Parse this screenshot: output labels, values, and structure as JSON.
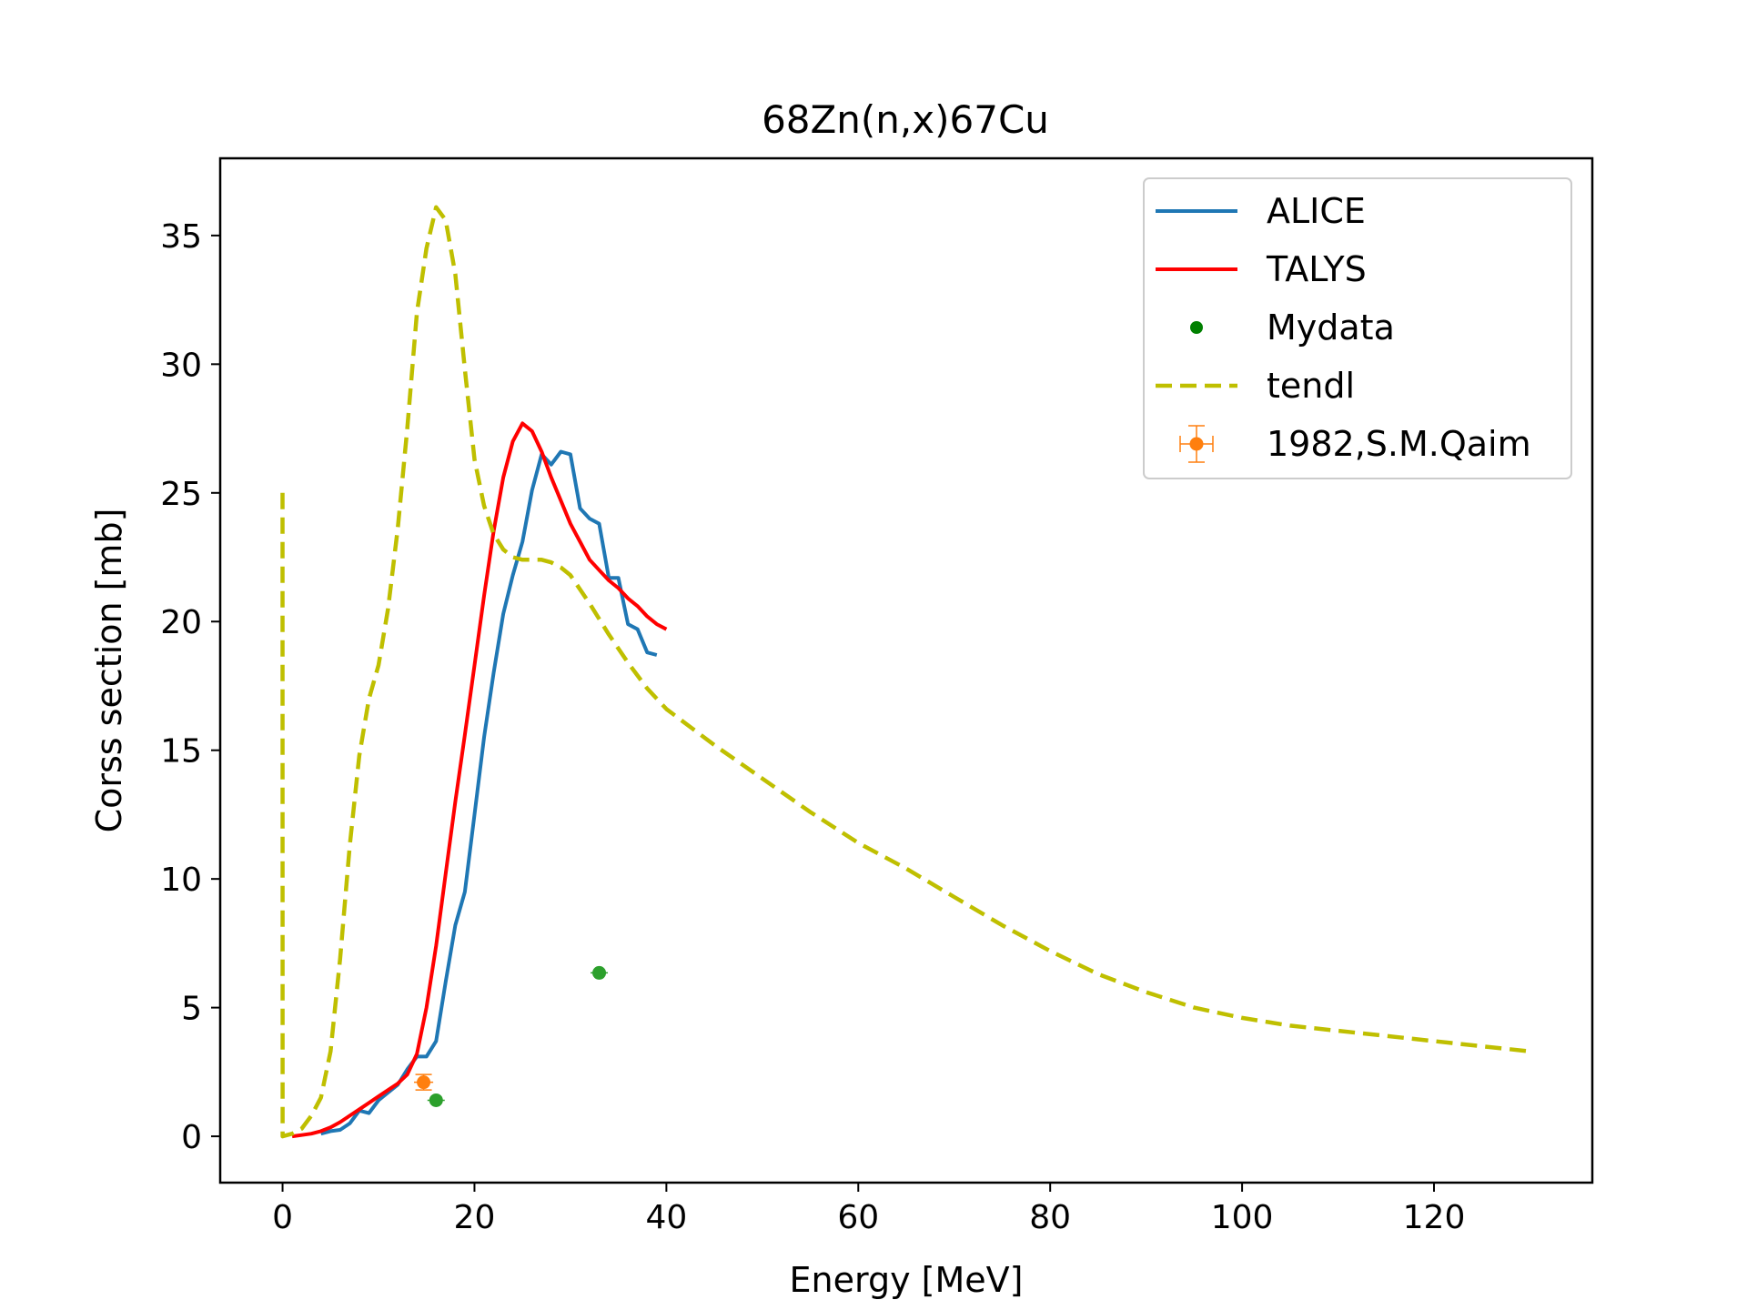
{
  "chart_data": {
    "type": "line",
    "title": "68Zn(n,x)67Cu",
    "xlabel": "Energy [MeV]",
    "ylabel": "Corss section [mb]",
    "xlim": [
      -6.5,
      136.5
    ],
    "ylim": [
      -1.8,
      38.0
    ],
    "xticks": [
      0,
      20,
      40,
      60,
      80,
      100,
      120
    ],
    "yticks": [
      0,
      5,
      10,
      15,
      20,
      25,
      30,
      35
    ],
    "grid": false,
    "legend_position": "top-right",
    "series": [
      {
        "name": "ALICE",
        "style": "solid",
        "color": "#1f77b4",
        "x": [
          4,
          5,
          6,
          7,
          8,
          9,
          10,
          11,
          12,
          13,
          14,
          15,
          16,
          17,
          18,
          19,
          20,
          21,
          22,
          23,
          24,
          25,
          26,
          27,
          28,
          29,
          30,
          31,
          32,
          33,
          34,
          35,
          36,
          37,
          38,
          39
        ],
        "y": [
          0.1,
          0.2,
          0.25,
          0.5,
          1.0,
          0.9,
          1.4,
          1.7,
          2.0,
          2.6,
          3.1,
          3.1,
          3.7,
          6.0,
          8.2,
          9.5,
          12.5,
          15.5,
          18.0,
          20.3,
          21.8,
          23.1,
          25.1,
          26.5,
          26.1,
          26.6,
          26.5,
          24.4,
          24.0,
          23.8,
          21.7,
          21.7,
          19.9,
          19.7,
          18.8,
          18.7
        ]
      },
      {
        "name": "TALYS",
        "style": "solid",
        "color": "#ff0000",
        "x": [
          1,
          2,
          3,
          4,
          5,
          6,
          7,
          8,
          9,
          10,
          11,
          12,
          13,
          14,
          15,
          16,
          17,
          18,
          19,
          20,
          21,
          22,
          23,
          24,
          25,
          26,
          27,
          28,
          29,
          30,
          31,
          32,
          33,
          34,
          35,
          36,
          37,
          38,
          39,
          40
        ],
        "y": [
          0.0,
          0.05,
          0.1,
          0.2,
          0.35,
          0.55,
          0.8,
          1.05,
          1.3,
          1.55,
          1.8,
          2.05,
          2.4,
          3.2,
          5.0,
          7.4,
          10.2,
          13.0,
          15.6,
          18.3,
          21.0,
          23.5,
          25.6,
          27.0,
          27.7,
          27.4,
          26.6,
          25.6,
          24.7,
          23.8,
          23.1,
          22.4,
          22.0,
          21.6,
          21.3,
          20.9,
          20.6,
          20.2,
          19.9,
          19.7
        ]
      },
      {
        "name": "Mydata",
        "style": "marker",
        "color": "#008000",
        "x": [
          16,
          33
        ],
        "y": [
          1.4,
          6.35
        ],
        "xerr": [
          0.9,
          0.9
        ],
        "yerr": [
          0.15,
          0.2
        ]
      },
      {
        "name": "tendl",
        "style": "dashed",
        "color": "#bfbf00",
        "x": [
          0,
          0.001,
          1,
          2,
          3,
          4,
          5,
          6,
          7,
          8,
          9,
          10,
          11,
          12,
          13,
          14,
          15,
          16,
          17,
          18,
          19,
          20,
          21,
          22,
          23,
          24,
          25,
          26,
          27,
          28,
          29,
          30,
          32,
          34,
          36,
          38,
          40,
          45,
          50,
          55,
          60,
          65,
          70,
          75,
          80,
          85,
          90,
          95,
          100,
          105,
          110,
          115,
          120,
          125,
          130
        ],
        "y": [
          25.0,
          0.0,
          0.1,
          0.3,
          0.8,
          1.5,
          3.3,
          6.9,
          11.3,
          14.8,
          17.0,
          18.3,
          20.5,
          23.6,
          27.5,
          32.0,
          34.5,
          36.1,
          35.6,
          33.5,
          29.8,
          26.3,
          24.5,
          23.4,
          22.8,
          22.5,
          22.4,
          22.4,
          22.4,
          22.3,
          22.1,
          21.8,
          20.7,
          19.5,
          18.4,
          17.4,
          16.6,
          15.2,
          13.9,
          12.6,
          11.4,
          10.4,
          9.3,
          8.2,
          7.2,
          6.3,
          5.6,
          5.0,
          4.6,
          4.3,
          4.1,
          3.9,
          3.7,
          3.5,
          3.3
        ]
      },
      {
        "name": "1982,S.M.Qaim",
        "style": "errorbar",
        "color": "#ff7f0e",
        "x": [
          14.7
        ],
        "y": [
          2.1
        ],
        "xerr": [
          1.0
        ],
        "yerr": [
          0.3
        ]
      }
    ]
  }
}
